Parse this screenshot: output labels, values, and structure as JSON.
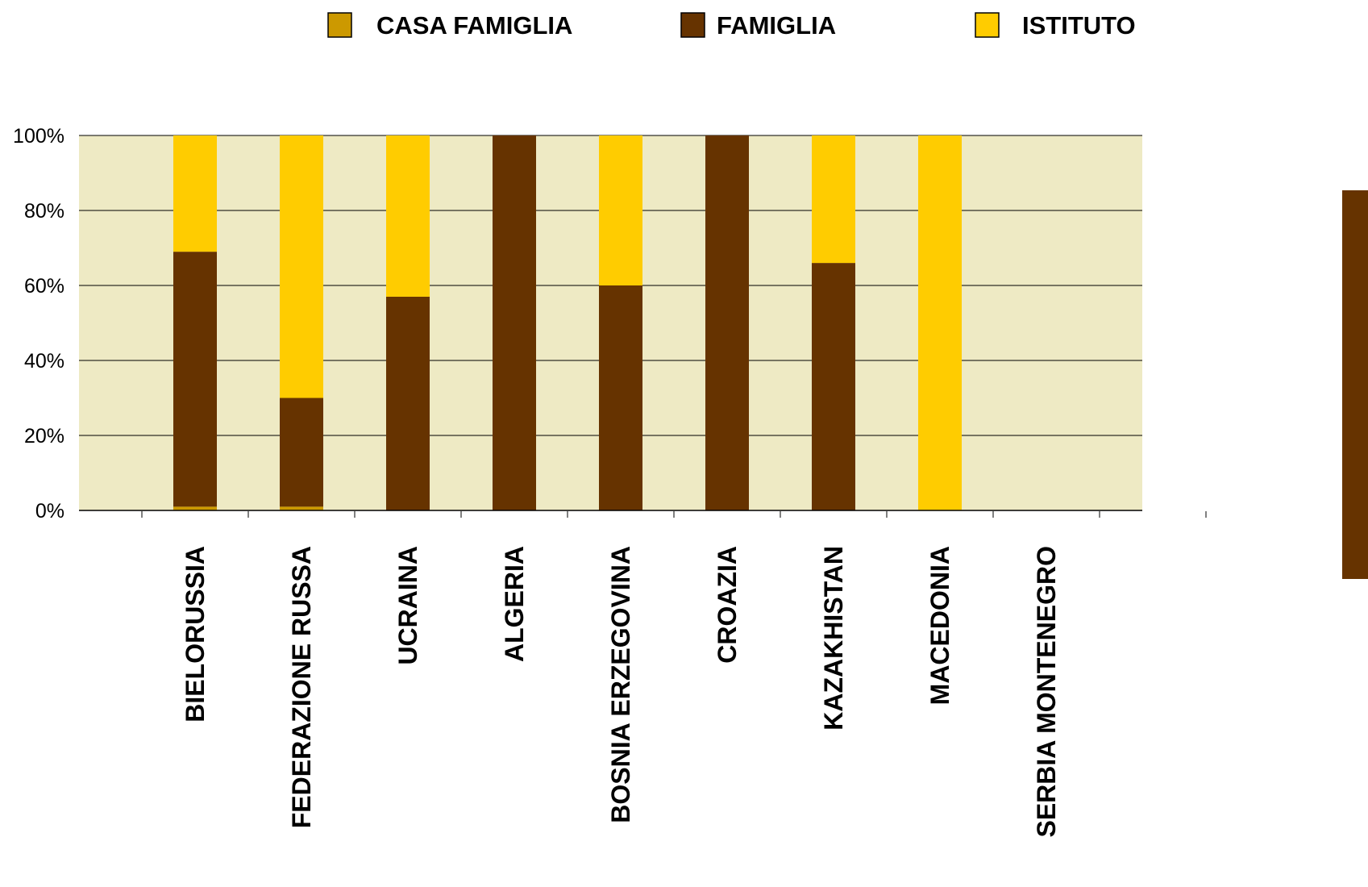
{
  "chart_data": {
    "type": "bar",
    "stacked": true,
    "percent_stacked": true,
    "categories": [
      "BIELORUSSIA",
      "FEDERAZIONE RUSSA",
      "UCRAINA",
      "ALGERIA",
      "BOSNIA ERZEGOVINA",
      "CROAZIA",
      "KAZAKHISTAN",
      "MACEDONIA",
      "SERBIA MONTENEGRO"
    ],
    "series": [
      {
        "name": "CASA FAMIGLIA",
        "color": "#CC9900",
        "values": [
          1,
          1,
          0,
          0,
          0,
          0,
          0,
          0,
          0
        ]
      },
      {
        "name": "FAMIGLIA",
        "color": "#663300",
        "values": [
          68,
          29,
          57,
          100,
          60,
          100,
          66,
          0,
          0
        ]
      },
      {
        "name": "ISTITUTO",
        "color": "#FFCC00",
        "values": [
          31,
          70,
          43,
          0,
          40,
          0,
          34,
          100,
          0
        ]
      }
    ],
    "ylim": [
      0,
      100
    ],
    "yticks": [
      0,
      20,
      40,
      60,
      80,
      100
    ],
    "ytick_labels": [
      "0%",
      "20%",
      "40%",
      "60%",
      "80%",
      "100%"
    ],
    "grid": true,
    "legend_position": "top",
    "plot_background": "#EEEAC4",
    "title": "",
    "xlabel": "",
    "ylabel": ""
  }
}
